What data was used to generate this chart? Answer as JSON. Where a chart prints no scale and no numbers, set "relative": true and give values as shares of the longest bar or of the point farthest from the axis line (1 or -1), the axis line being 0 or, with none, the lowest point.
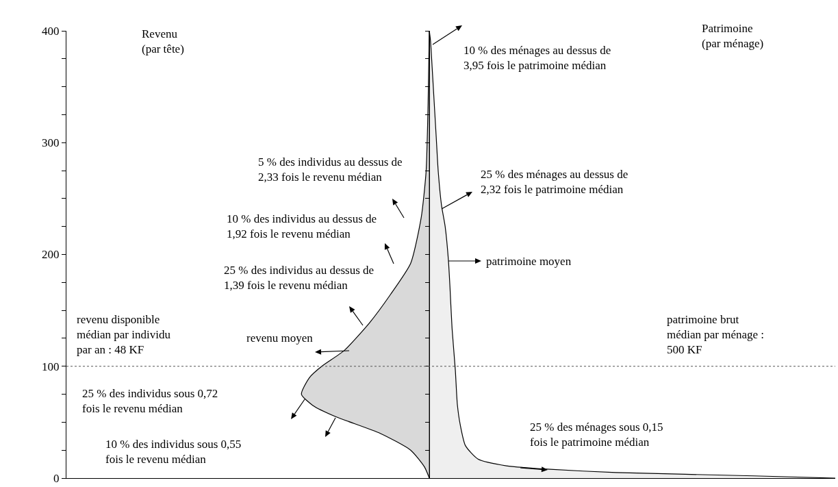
{
  "chart_data": {
    "type": "area",
    "orientation": "horizontal",
    "relative": true,
    "series": [
      {
        "color": "#d9d9d9",
        "x": [
          0,
          10,
          25,
          40,
          55,
          65,
          75,
          90,
          100,
          114,
          139,
          164,
          192,
          233,
          274,
          335,
          400
        ],
        "values": [
          0,
          -0.012,
          -0.046,
          -0.121,
          -0.231,
          -0.287,
          -0.315,
          -0.295,
          -0.265,
          -0.21,
          -0.147,
          -0.096,
          -0.046,
          -0.02,
          -0.008,
          -0.003,
          0
        ]
      },
      {
        "color": "#efefef",
        "x": [
          0,
          2,
          5,
          8,
          11,
          17,
          29,
          48,
          66,
          97,
          134,
          170,
          195,
          225,
          244,
          274,
          305,
          336,
          367,
          391,
          400
        ],
        "values": [
          1,
          0.8,
          0.46,
          0.29,
          0.19,
          0.12,
          0.089,
          0.076,
          0.069,
          0.064,
          0.056,
          0.051,
          0.047,
          0.039,
          0.03,
          0.022,
          0.017,
          0.012,
          0.007,
          0.003,
          0
        ]
      }
    ],
    "ylim": [
      0,
      400
    ],
    "yticks": [
      0,
      {
        "value": 25,
        "label": null
      },
      {
        "value": 50,
        "label": null
      },
      {
        "value": 75,
        "label": null
      },
      100,
      {
        "value": 125,
        "label": null
      },
      {
        "value": 150,
        "label": null
      },
      {
        "value": 175,
        "label": null
      },
      200,
      {
        "value": 225,
        "label": null
      },
      {
        "value": 250,
        "label": null
      },
      {
        "value": 275,
        "label": null
      },
      300,
      {
        "value": 325,
        "label": null
      },
      {
        "value": 350,
        "label": null
      },
      {
        "value": 375,
        "label": null
      },
      400
    ],
    "ref_lines": [
      {
        "axis": "y",
        "value": 100,
        "line_style": "dotted"
      }
    ],
    "annotations": [
      "Revenu\n(par tête)",
      "Patrimoine\n(par ménage)",
      "10 % des ménages au dessus de\n3,95 fois le patrimoine médian",
      "25 % des ménages au dessus de\n2,32 fois le patrimoine médian",
      "patrimoine moyen",
      "5 % des individus au dessus de\n2,33 fois le revenu médian",
      "10 % des individus au dessus de\n1,92 fois le revenu médian",
      "25 % des individus au dessus de\n1,39 fois le revenu médian",
      "revenu disponible\nmédian par individu\npar an : 48 KF",
      "revenu moyen",
      "patrimoine brut\nmédian par ménage :\n500 KF",
      "25 % des individus sous 0,72\nfois le revenu médian",
      "10 % des individus sous 0,55\nfois le revenu médian",
      "25 % des ménages sous 0,15\nfois le patrimoine médian"
    ]
  }
}
